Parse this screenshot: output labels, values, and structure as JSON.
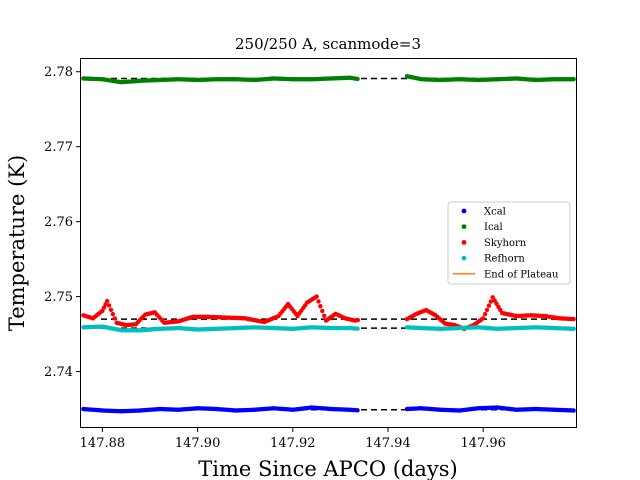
{
  "chart_data": {
    "type": "scatter",
    "title": "250/250 A, scanmode=3",
    "xlabel": "Time Since APCO (days)",
    "ylabel": "Temperature (K)",
    "xlim": [
      147.8755,
      147.9795
    ],
    "ylim": [
      2.7326,
      2.7817
    ],
    "x_ticks": [
      147.88,
      147.9,
      147.92,
      147.94,
      147.96
    ],
    "x_tick_labels": [
      "147.88",
      "147.90",
      "147.92",
      "147.94",
      "147.96"
    ],
    "y_ticks": [
      2.74,
      2.75,
      2.76,
      2.77,
      2.78
    ],
    "y_tick_labels": [
      "2.74",
      "2.75",
      "2.76",
      "2.77",
      "2.78"
    ],
    "grid": false,
    "legend_position": "right",
    "gap": [
      147.934,
      147.944
    ],
    "series": [
      {
        "name": "Xcal",
        "color": "#0000ff",
        "base": 2.7349,
        "x": [
          147.876,
          147.88,
          147.884,
          147.888,
          147.892,
          147.896,
          147.9,
          147.904,
          147.908,
          147.912,
          147.916,
          147.92,
          147.924,
          147.928,
          147.932,
          147.934,
          147.944,
          147.947,
          147.951,
          147.955,
          147.959,
          147.963,
          147.967,
          147.971,
          147.975,
          147.979
        ],
        "y": [
          2.735,
          2.7348,
          2.7347,
          2.7348,
          2.735,
          2.7349,
          2.7351,
          2.735,
          2.7348,
          2.7349,
          2.7351,
          2.7349,
          2.7352,
          2.735,
          2.7349,
          2.7348,
          2.735,
          2.7351,
          2.7349,
          2.7348,
          2.7351,
          2.7352,
          2.7349,
          2.735,
          2.7349,
          2.7348
        ]
      },
      {
        "name": "Ical",
        "color": "#008000",
        "base": 2.7791,
        "x": [
          147.876,
          147.88,
          147.884,
          147.888,
          147.892,
          147.896,
          147.9,
          147.904,
          147.908,
          147.912,
          147.916,
          147.92,
          147.924,
          147.928,
          147.932,
          147.934,
          147.944,
          147.947,
          147.951,
          147.955,
          147.959,
          147.963,
          147.967,
          147.971,
          147.975,
          147.979
        ],
        "y": [
          2.7791,
          2.779,
          2.7786,
          2.7788,
          2.7789,
          2.779,
          2.7789,
          2.779,
          2.779,
          2.7789,
          2.7791,
          2.779,
          2.779,
          2.7791,
          2.7792,
          2.779,
          2.7794,
          2.779,
          2.7789,
          2.779,
          2.7789,
          2.779,
          2.7791,
          2.7789,
          2.779,
          2.779
        ]
      },
      {
        "name": "Skyhorn",
        "color": "#ff0000",
        "base": 2.747,
        "x": [
          147.876,
          147.878,
          147.88,
          147.881,
          147.883,
          147.885,
          147.887,
          147.889,
          147.891,
          147.893,
          147.896,
          147.899,
          147.902,
          147.906,
          147.91,
          147.914,
          147.917,
          147.919,
          147.921,
          147.923,
          147.925,
          147.927,
          147.929,
          147.931,
          147.933,
          147.934,
          147.944,
          147.946,
          147.948,
          147.95,
          147.952,
          147.954,
          147.956,
          147.958,
          147.96,
          147.962,
          147.964,
          147.967,
          147.97,
          147.973,
          147.976,
          147.979
        ],
        "y": [
          2.7475,
          2.7471,
          2.7481,
          2.7494,
          2.7465,
          2.7462,
          2.7463,
          2.7476,
          2.7479,
          2.7465,
          2.7467,
          2.7473,
          2.7473,
          2.7472,
          2.7471,
          2.7466,
          2.7474,
          2.749,
          2.7474,
          2.7492,
          2.75,
          2.7468,
          2.7477,
          2.7471,
          2.7468,
          2.7469,
          2.747,
          2.7477,
          2.7482,
          2.7475,
          2.7464,
          2.7462,
          2.7457,
          2.7462,
          2.7471,
          2.7499,
          2.7478,
          2.7474,
          2.7475,
          2.7474,
          2.7471,
          2.747
        ]
      },
      {
        "name": "Refhorn",
        "color": "#00bfbf",
        "base": 2.7458,
        "x": [
          147.876,
          147.88,
          147.884,
          147.888,
          147.892,
          147.896,
          147.9,
          147.904,
          147.908,
          147.912,
          147.916,
          147.92,
          147.924,
          147.928,
          147.932,
          147.934,
          147.944,
          147.947,
          147.951,
          147.955,
          147.959,
          147.963,
          147.967,
          147.971,
          147.975,
          147.979
        ],
        "y": [
          2.7459,
          2.746,
          2.7455,
          2.7455,
          2.7457,
          2.7458,
          2.7456,
          2.7457,
          2.7458,
          2.7459,
          2.7458,
          2.7457,
          2.7459,
          2.7458,
          2.7458,
          2.7457,
          2.7459,
          2.7458,
          2.7457,
          2.7458,
          2.7459,
          2.7457,
          2.7458,
          2.7459,
          2.7458,
          2.7457
        ]
      }
    ],
    "reference_line": {
      "name": "End of Plateau",
      "color": "#ff7f0e"
    }
  }
}
